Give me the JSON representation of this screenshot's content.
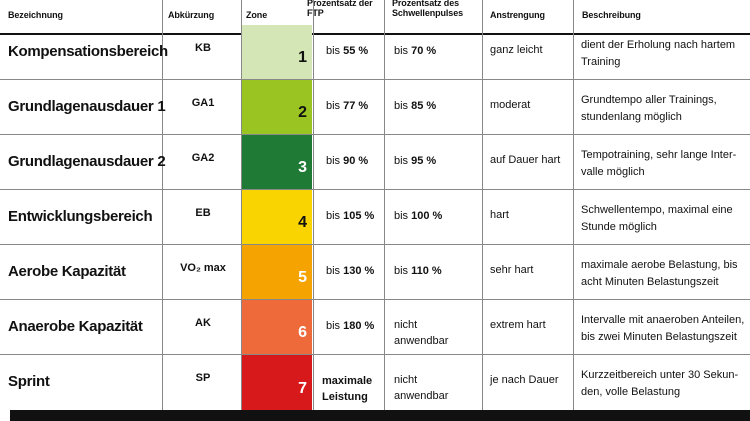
{
  "headers": {
    "bezeichnung": "Bezeichnung",
    "abkuerzung": "Abkürzung",
    "zone": "Zone",
    "ftp": "Prozentsatz der FTP",
    "schwelle": "Prozentsatz des Schwellenpulses",
    "anstrengung": "Anstrengung",
    "beschreibung": "Beschreibung"
  },
  "rows": [
    {
      "name": "Kompensationsbereich",
      "abbr": "KB",
      "zone": "1",
      "zone_color": "#d4e6b5",
      "zone_text_color": "#111111",
      "ftp_prefix": "bis",
      "ftp_value": "55 %",
      "sp_prefix": "bis",
      "sp_value": "70 %",
      "anstrengung": "ganz leicht",
      "desc_1": "dient der Erholung nach hartem",
      "desc_2": "Training"
    },
    {
      "name": "Grundlagenausdauer 1",
      "abbr": "GA1",
      "zone": "2",
      "zone_color": "#99c421",
      "zone_text_color": "#111111",
      "ftp_prefix": "bis",
      "ftp_value": "77 %",
      "sp_prefix": "bis",
      "sp_value": "85 %",
      "anstrengung": "moderat",
      "desc_1": "Grundtempo aller Trainings,",
      "desc_2": "stundenlang möglich"
    },
    {
      "name": "Grundlagenausdauer 2",
      "abbr": "GA2",
      "zone": "3",
      "zone_color": "#1f7a35",
      "zone_text_color": "#ffffff",
      "ftp_prefix": "bis",
      "ftp_value": "90 %",
      "sp_prefix": "bis",
      "sp_value": "95 %",
      "anstrengung": "auf Dauer hart",
      "desc_1": "Tempotraining, sehr lange Inter-",
      "desc_2": "valle möglich"
    },
    {
      "name": "Entwicklungsbereich",
      "abbr": "EB",
      "zone": "4",
      "zone_color": "#fad400",
      "zone_text_color": "#111111",
      "ftp_prefix": "bis",
      "ftp_value": "105 %",
      "sp_prefix": "bis",
      "sp_value": "100 %",
      "anstrengung": "hart",
      "desc_1": "Schwellentempo, maximal eine",
      "desc_2": "Stunde möglich"
    },
    {
      "name": "Aerobe Kapazität",
      "abbr": "VO₂ max",
      "zone": "5",
      "zone_color": "#f5a300",
      "zone_text_color": "#ffffff",
      "ftp_prefix": "bis",
      "ftp_value": "130 %",
      "sp_prefix": "bis",
      "sp_value": "110 %",
      "anstrengung": "sehr hart",
      "desc_1": "maximale aerobe Belastung, bis",
      "desc_2": "acht Minuten Belastungszeit"
    },
    {
      "name": "Anaerobe Kapazität",
      "abbr": "AK",
      "zone": "6",
      "zone_color": "#ee6a3a",
      "zone_text_color": "#ffffff",
      "ftp_prefix": "bis",
      "ftp_value": "180 %",
      "sp_line1": "nicht",
      "sp_line2": "anwendbar",
      "anstrengung": "extrem hart",
      "desc_1": "Intervalle mit anaeroben Anteilen,",
      "desc_2": "bis zwei Minuten Belastungszeit"
    },
    {
      "name": "Sprint",
      "abbr": "SP",
      "zone": "7",
      "zone_color": "#d7191c",
      "zone_text_color": "#ffffff",
      "ftp_line1": "maximale",
      "ftp_line2": "Leistung",
      "sp_line1": "nicht",
      "sp_line2": "anwendbar",
      "anstrengung": "je nach Dauer",
      "desc_1": "Kurzzeitbereich unter 30 Sekun-",
      "desc_2": "den, volle Belastung"
    }
  ]
}
